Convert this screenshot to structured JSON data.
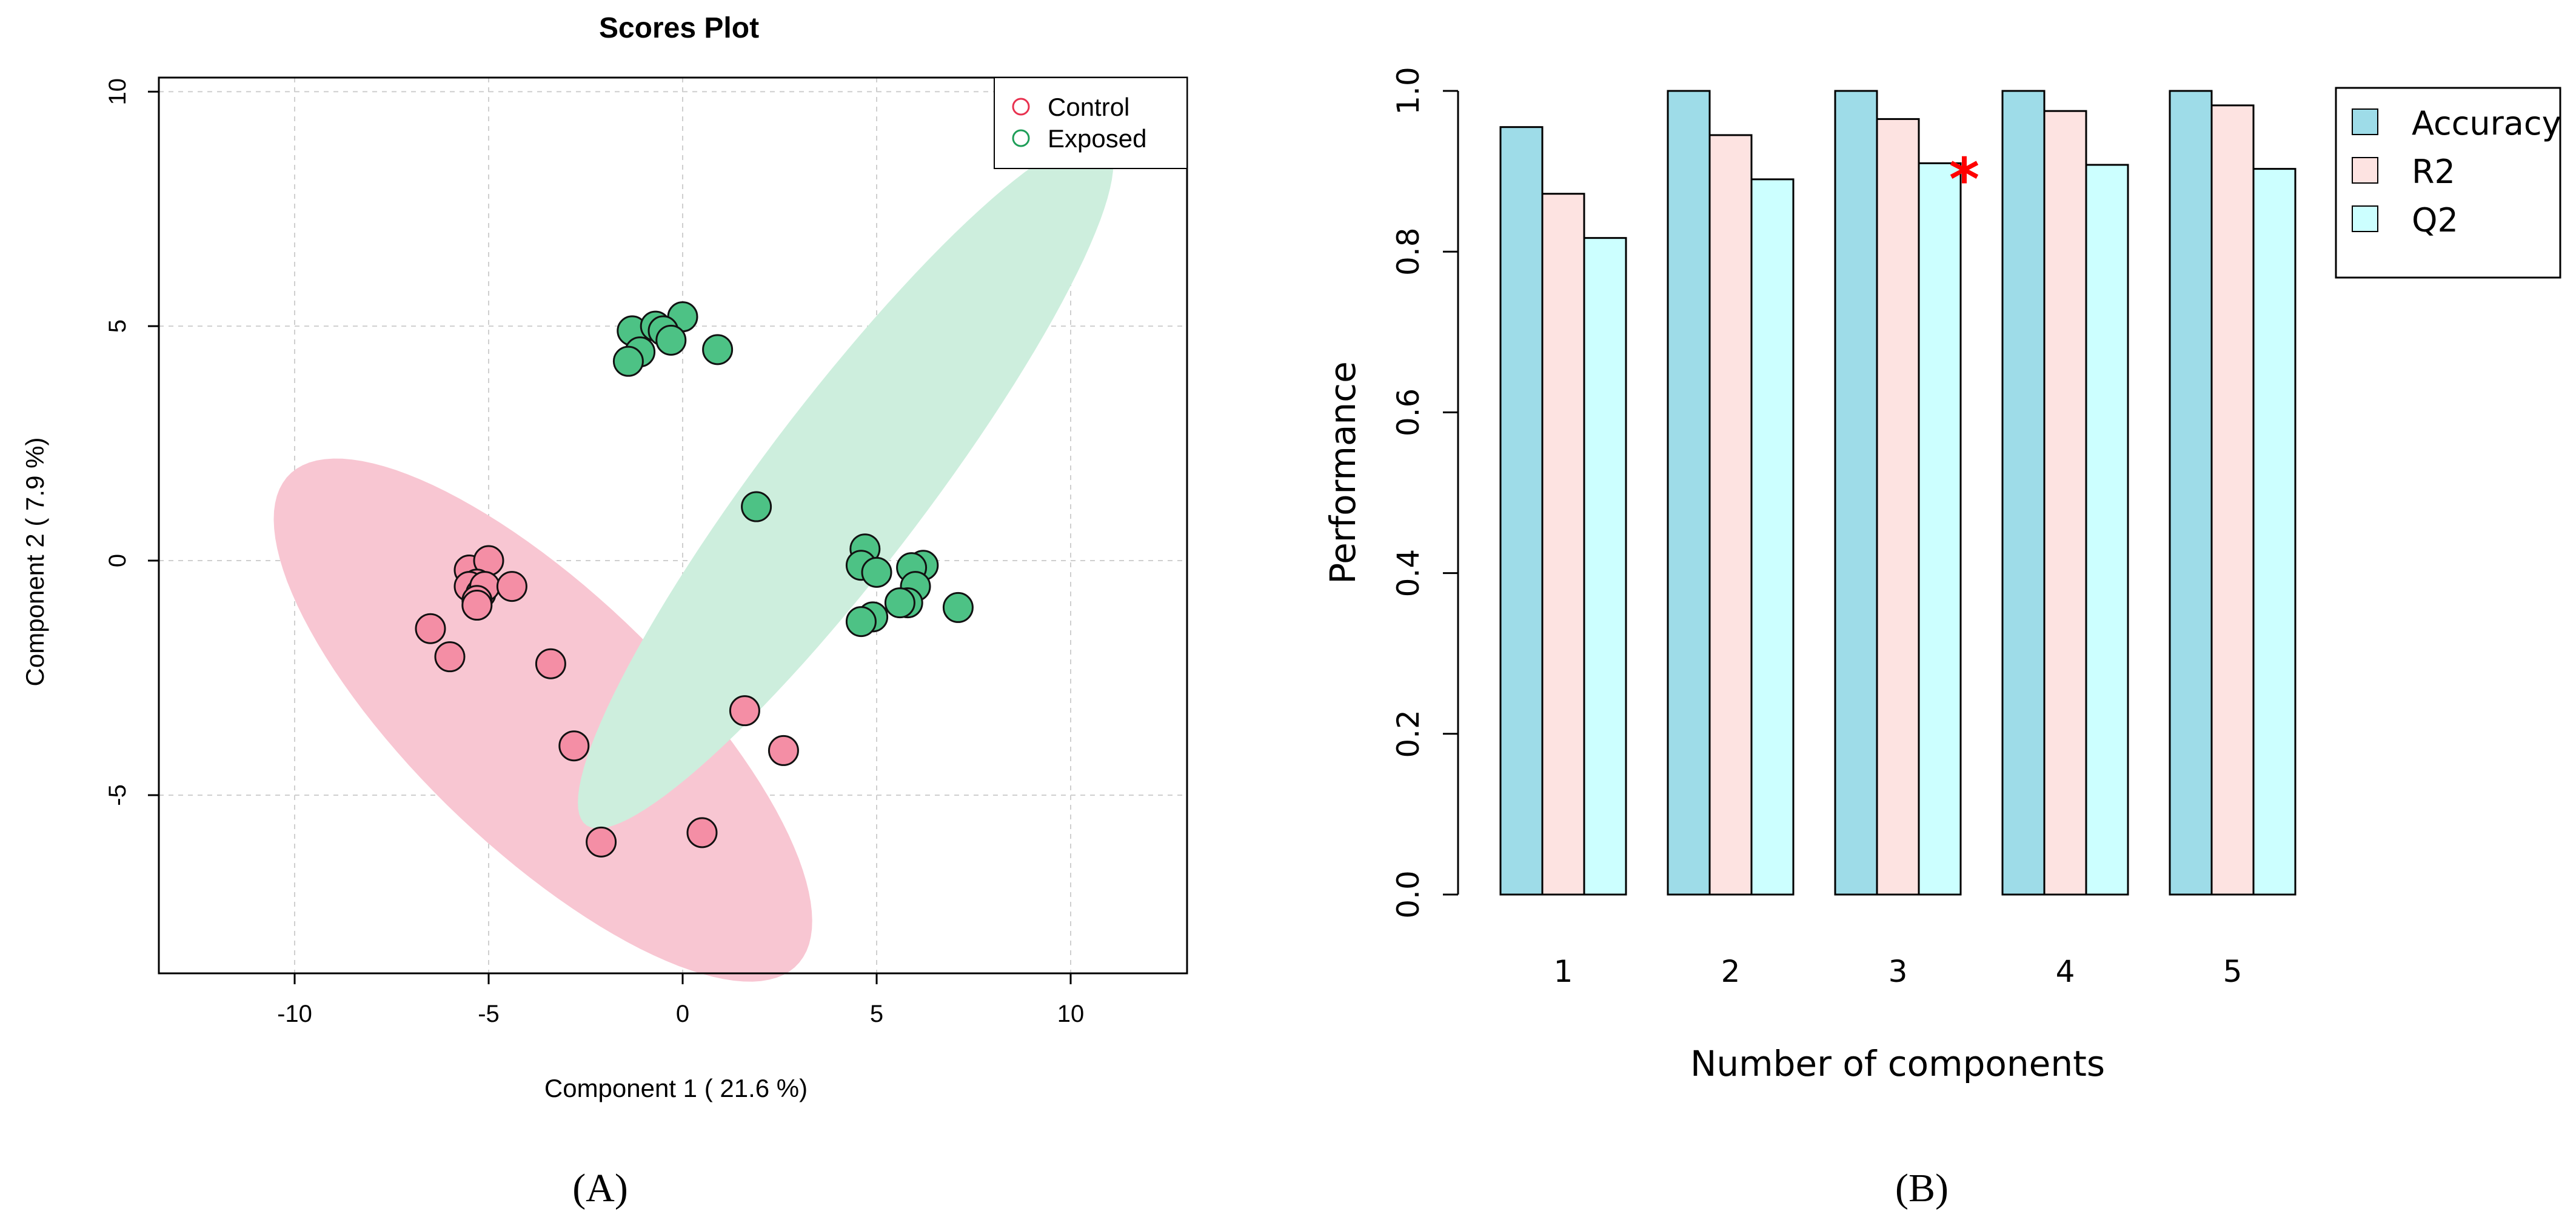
{
  "chart_data": [
    {
      "type": "scatter",
      "title": "Scores Plot",
      "xlabel": "Component 1 ( 21.6 %)",
      "ylabel": "Component 2 ( 7.9 %)",
      "xlim": [
        -13.5,
        13
      ],
      "ylim": [
        -8.8,
        10.3
      ],
      "xticks": [
        -10,
        -5,
        0,
        5,
        10
      ],
      "yticks": [
        -5,
        0,
        5,
        10
      ],
      "xtick_labels": [
        "-10",
        "-5",
        "0",
        "5",
        "10"
      ],
      "ytick_labels": [
        "-5",
        "0",
        "5",
        "10"
      ],
      "grid": true,
      "legend": "top-right",
      "panel_label": "(A)",
      "series": [
        {
          "name": "Control",
          "color": "#f48ea5",
          "edge_color": "#e8314f",
          "ellipse": {
            "cx": -3.6,
            "cy": -3.4,
            "rx": 8.4,
            "ry": 2.95,
            "angle_deg": -37,
            "color": "#f8c6d2"
          },
          "points": [
            [
              -5.5,
              -0.2
            ],
            [
              -5.0,
              0.0
            ],
            [
              -5.3,
              -0.5
            ],
            [
              -5.5,
              -0.55
            ],
            [
              -5.2,
              -0.7
            ],
            [
              -5.1,
              -0.55
            ],
            [
              -4.4,
              -0.55
            ],
            [
              -5.3,
              -0.85
            ],
            [
              -5.3,
              -0.95
            ],
            [
              -6.5,
              -1.45
            ],
            [
              -6.0,
              -2.05
            ],
            [
              -3.4,
              -2.2
            ],
            [
              -2.8,
              -3.95
            ],
            [
              1.6,
              -3.2
            ],
            [
              2.6,
              -4.05
            ],
            [
              0.5,
              -5.8
            ],
            [
              -2.1,
              -6.0
            ]
          ]
        },
        {
          "name": "Exposed",
          "color": "#4dc285",
          "edge_color": "#1e9e58",
          "ellipse": {
            "cx": 4.2,
            "cy": 1.65,
            "rx": 9.9,
            "ry": 1.95,
            "angle_deg": 47,
            "color": "#cdeedd"
          },
          "points": [
            [
              -1.3,
              4.9
            ],
            [
              -0.7,
              5.0
            ],
            [
              0.0,
              5.2
            ],
            [
              -0.5,
              4.9
            ],
            [
              -0.3,
              4.7
            ],
            [
              -1.1,
              4.45
            ],
            [
              -1.4,
              4.25
            ],
            [
              0.9,
              4.5
            ],
            [
              1.9,
              1.15
            ],
            [
              4.7,
              0.25
            ],
            [
              4.6,
              -0.1
            ],
            [
              6.2,
              -0.1
            ],
            [
              5.9,
              -0.15
            ],
            [
              5.0,
              -0.25
            ],
            [
              6.0,
              -0.55
            ],
            [
              5.8,
              -0.9
            ],
            [
              5.6,
              -0.9
            ],
            [
              4.9,
              -1.2
            ],
            [
              4.6,
              -1.3
            ],
            [
              7.1,
              -1.0
            ]
          ]
        }
      ]
    },
    {
      "type": "bar",
      "title": "",
      "xlabel": "Number of components",
      "ylabel": "Performance",
      "ylim": [
        0,
        1
      ],
      "yticks": [
        0,
        0.2,
        0.4,
        0.6,
        0.8,
        1
      ],
      "ytick_labels": [
        "0.0",
        "0.2",
        "0.4",
        "0.6",
        "0.8",
        "1.0"
      ],
      "categories": [
        "1",
        "2",
        "3",
        "4",
        "5"
      ],
      "legend": "top-right",
      "panel_label": "(B)",
      "best_marker": {
        "symbol": "*",
        "category_index": 2,
        "color": "#ff0000"
      },
      "series": [
        {
          "name": "Accuracy",
          "color": "#9edce8",
          "values": [
            0.955,
            1.0,
            1.0,
            1.0,
            1.0
          ]
        },
        {
          "name": "R2",
          "color": "#fde3e1",
          "values": [
            0.872,
            0.945,
            0.965,
            0.975,
            0.982
          ]
        },
        {
          "name": "Q2",
          "color": "#ccffff",
          "values": [
            0.817,
            0.89,
            0.91,
            0.908,
            0.903
          ]
        }
      ]
    }
  ]
}
